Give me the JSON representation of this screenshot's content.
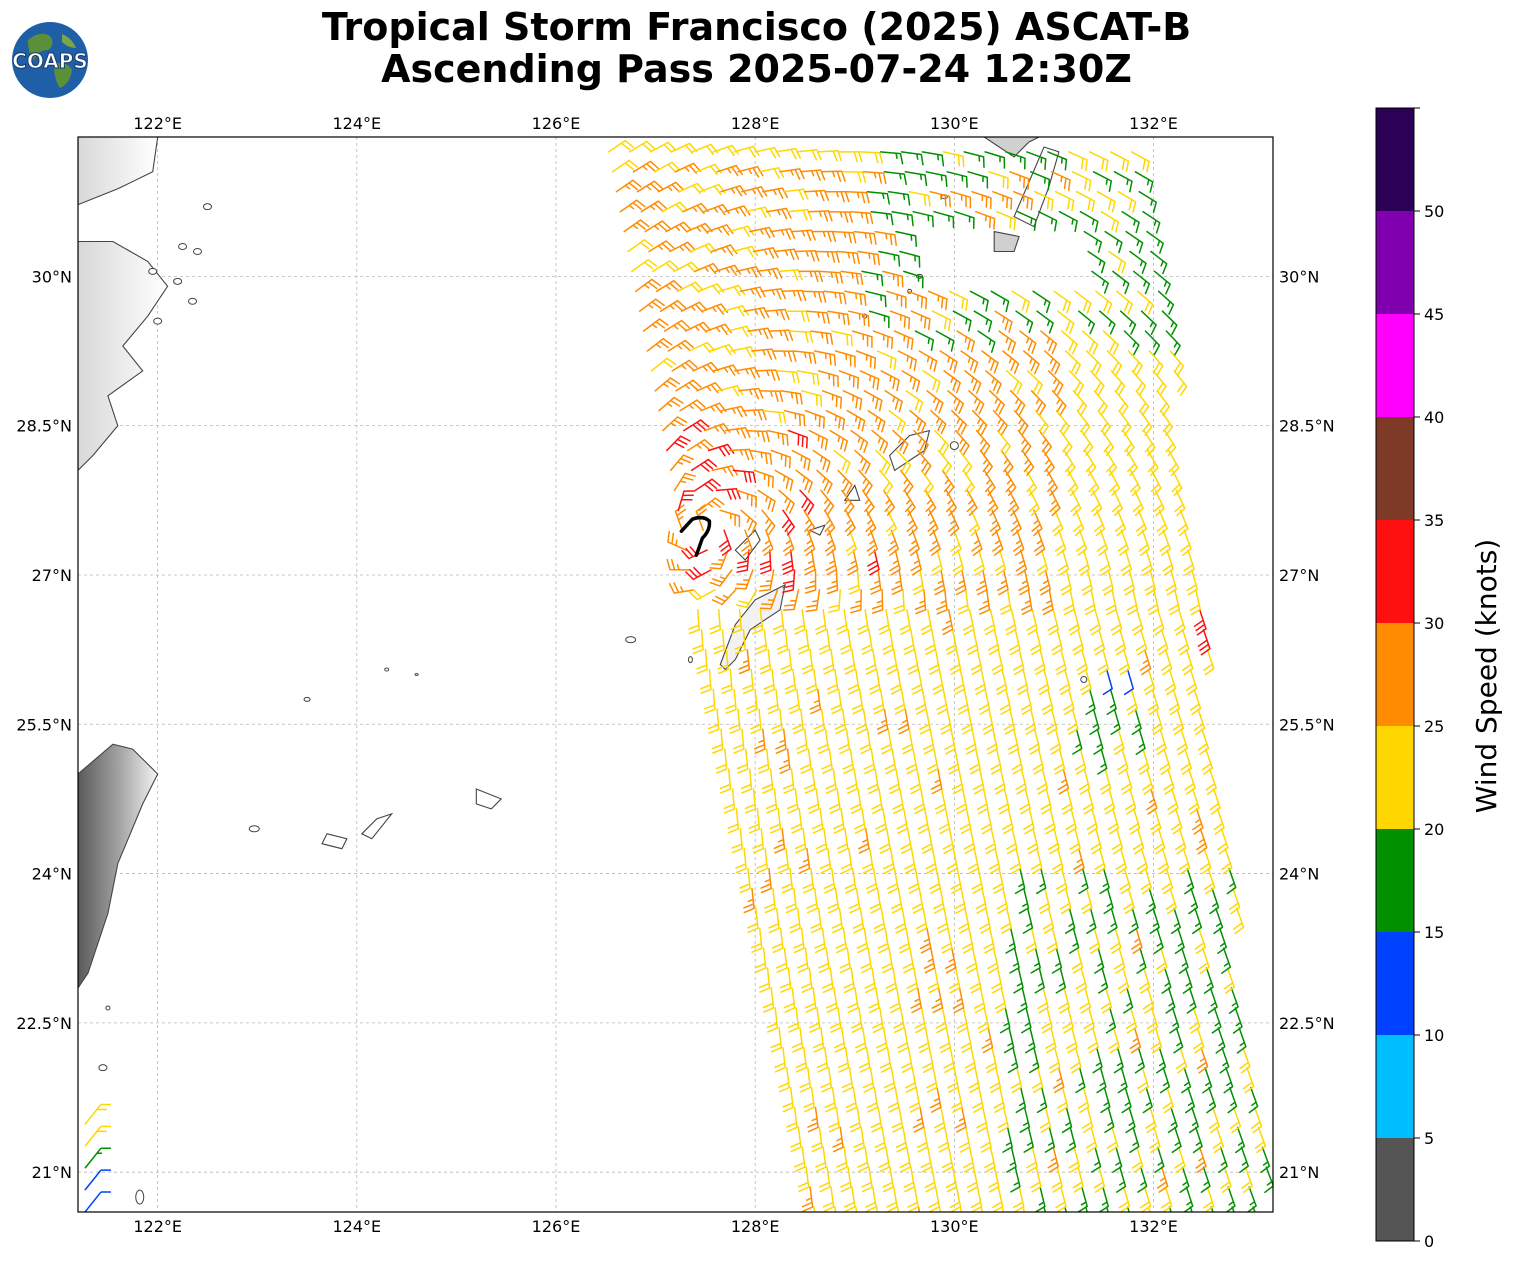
{
  "title": {
    "line1": "Tropical Storm Francisco (2025) ASCAT-B",
    "line2": "Ascending Pass 2025-07-24 12:30Z"
  },
  "logo": {
    "text": "COAPS",
    "ocean_color": "#1f5fa8",
    "land_color": "#5b8f3a"
  },
  "map": {
    "lon_range": [
      121.2,
      133.2
    ],
    "lat_range": [
      20.6,
      31.4
    ],
    "x_ticks": [
      {
        "lon": 122,
        "label": "122°E"
      },
      {
        "lon": 124,
        "label": "124°E"
      },
      {
        "lon": 126,
        "label": "126°E"
      },
      {
        "lon": 128,
        "label": "128°E"
      },
      {
        "lon": 130,
        "label": "130°E"
      },
      {
        "lon": 132,
        "label": "132°E"
      }
    ],
    "y_ticks": [
      {
        "lat": 21,
        "label": "21°N"
      },
      {
        "lat": 22.5,
        "label": "22.5°N"
      },
      {
        "lat": 24,
        "label": "24°N"
      },
      {
        "lat": 25.5,
        "label": "25.5°N"
      },
      {
        "lat": 27,
        "label": "27°N"
      },
      {
        "lat": 28.5,
        "label": "28.5°N"
      },
      {
        "lat": 30,
        "label": "30°N"
      }
    ],
    "gridlines": true,
    "storm_center": {
      "lon": 127.5,
      "lat": 27.45,
      "symbol": "tropical-storm-icon"
    },
    "land_outline_color": "#444444"
  },
  "colorbar": {
    "label": "Wind Speed (knots)",
    "ticks": [
      "0",
      "5",
      "10",
      "15",
      "20",
      "25",
      "30",
      "35",
      "40",
      "45",
      "50"
    ],
    "bins": [
      {
        "min": 0,
        "max": 5,
        "color": "#555555"
      },
      {
        "min": 5,
        "max": 10,
        "color": "#00bfff"
      },
      {
        "min": 10,
        "max": 15,
        "color": "#0040ff"
      },
      {
        "min": 15,
        "max": 20,
        "color": "#009000"
      },
      {
        "min": 20,
        "max": 25,
        "color": "#ffd700"
      },
      {
        "min": 25,
        "max": 30,
        "color": "#ff8c00"
      },
      {
        "min": 30,
        "max": 35,
        "color": "#ff1010"
      },
      {
        "min": 35,
        "max": 40,
        "color": "#7f3a27"
      },
      {
        "min": 40,
        "max": 45,
        "color": "#ff00ff"
      },
      {
        "min": 45,
        "max": 50,
        "color": "#8000b0"
      },
      {
        "min": 50,
        "max": 55,
        "color": "#2c0057"
      }
    ]
  },
  "wind_field": {
    "swath_main": {
      "lat_top": 31.4,
      "lat_bottom": 20.6,
      "west_lon_top": 126.5,
      "west_lon_bottom": 128.6,
      "east_lon_top": 131.95,
      "east_lon_bottom": 133.2
    },
    "swath_sw": {
      "lon_range": [
        121.2,
        121.6
      ],
      "lat_range": [
        20.7,
        21.7
      ]
    },
    "center": {
      "lon": 127.5,
      "lat": 27.45
    },
    "speed_regions": [
      {
        "description": "core red",
        "lon": [
          127.1,
          128.6
        ],
        "lat": [
          27.0,
          28.6
        ],
        "speed": 32
      },
      {
        "description": "east red band",
        "lon": [
          129.0,
          129.8
        ],
        "lat": [
          27.2,
          27.6
        ],
        "speed": 31
      },
      {
        "description": "far-east red",
        "lon": [
          132.3,
          132.8
        ],
        "lat": [
          26.3,
          26.7
        ],
        "speed": 31
      },
      {
        "description": "orange north",
        "lon": [
          126.6,
          131.0
        ],
        "lat": [
          26.8,
          31.2
        ],
        "speed": 27
      },
      {
        "description": "green north-east",
        "lon": [
          129.0,
          132.2
        ],
        "lat": [
          29.3,
          31.4
        ],
        "speed": 18
      },
      {
        "description": "green south-east",
        "lon": [
          130.5,
          133.2
        ],
        "lat": [
          20.6,
          24.2
        ],
        "speed": 18
      },
      {
        "description": "blue patch",
        "lon": [
          131.5,
          131.9
        ],
        "lat": [
          25.9,
          26.2
        ],
        "speed": 12
      },
      {
        "description": "green south-east 2",
        "lon": [
          131.2,
          131.9
        ],
        "lat": [
          25.0,
          25.9
        ],
        "speed": 18
      }
    ]
  }
}
